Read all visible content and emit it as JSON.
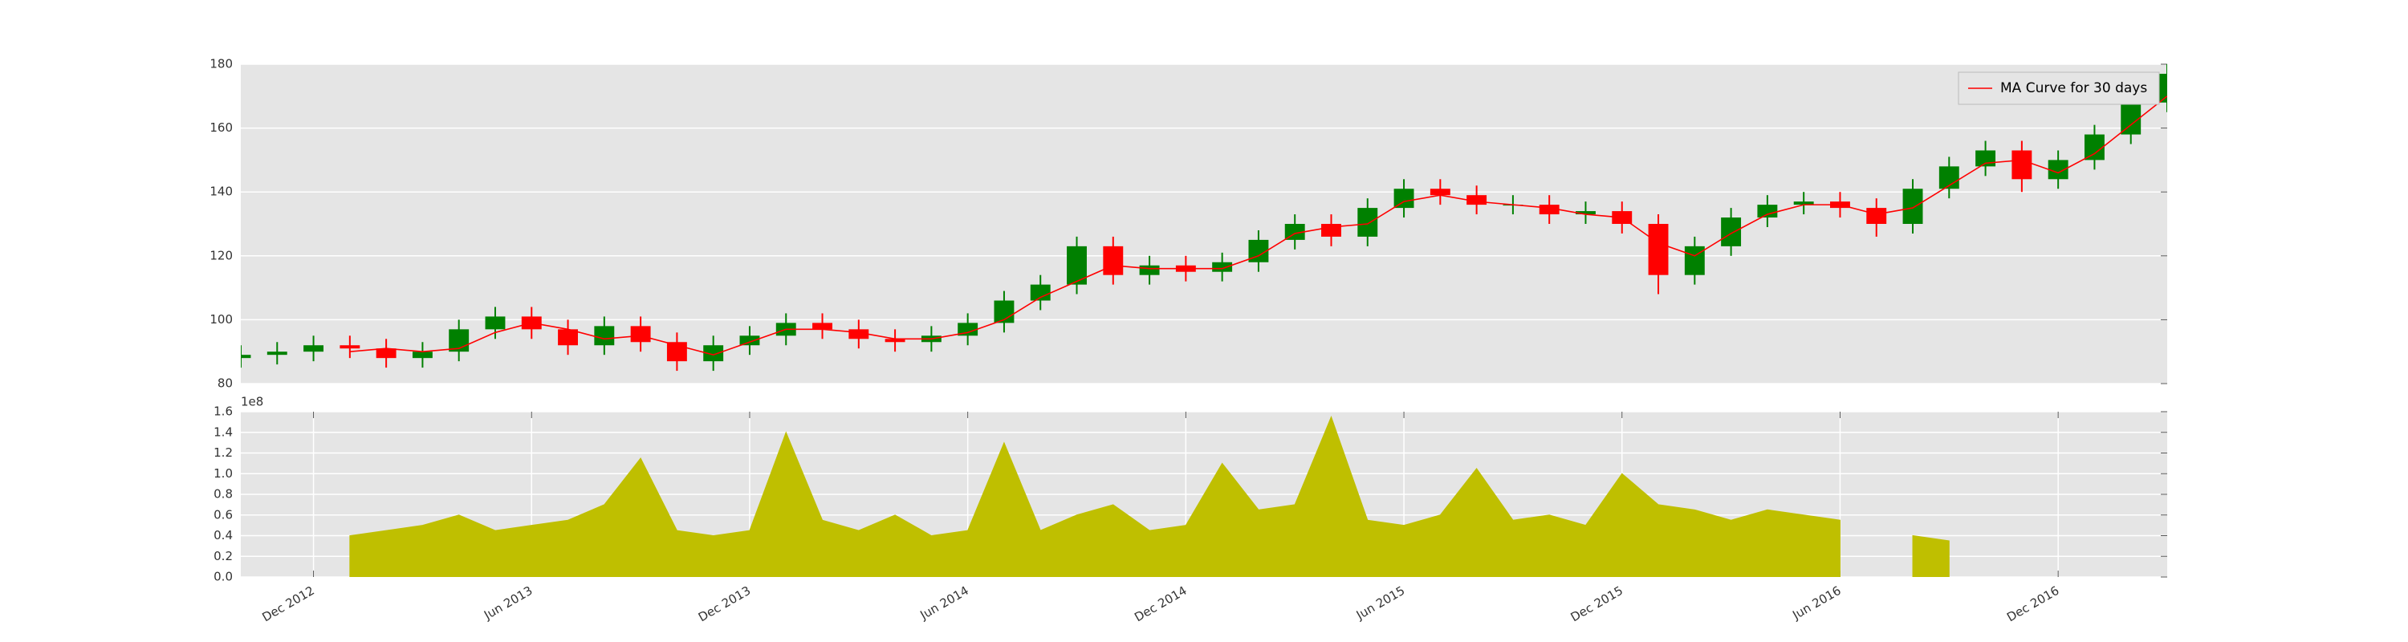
{
  "chart_data": [
    {
      "type": "candlestick",
      "x": [
        "2012-10",
        "2012-11",
        "2012-12",
        "2013-01",
        "2013-02",
        "2013-03",
        "2013-04",
        "2013-05",
        "2013-06",
        "2013-07",
        "2013-08",
        "2013-09",
        "2013-10",
        "2013-11",
        "2013-12",
        "2014-01",
        "2014-02",
        "2014-03",
        "2014-04",
        "2014-05",
        "2014-06",
        "2014-07",
        "2014-08",
        "2014-09",
        "2014-10",
        "2014-11",
        "2014-12",
        "2015-01",
        "2015-02",
        "2015-03",
        "2015-04",
        "2015-05",
        "2015-06",
        "2015-07",
        "2015-08",
        "2015-09",
        "2015-10",
        "2015-11",
        "2015-12",
        "2016-01",
        "2016-02",
        "2016-03",
        "2016-04",
        "2016-05",
        "2016-06",
        "2016-07",
        "2016-08",
        "2016-09",
        "2016-10",
        "2016-11",
        "2016-12",
        "2017-01",
        "2017-02",
        "2017-03"
      ],
      "open": [
        88,
        89,
        90,
        92,
        91,
        88,
        90,
        97,
        101,
        97,
        92,
        98,
        93,
        87,
        92,
        95,
        99,
        97,
        94,
        93,
        95,
        99,
        106,
        111,
        123,
        114,
        117,
        115,
        118,
        125,
        130,
        126,
        135,
        141,
        139,
        136,
        136,
        133,
        134,
        130,
        114,
        123,
        132,
        136,
        137,
        135,
        130,
        141,
        148,
        153,
        144,
        150,
        158,
        168
      ],
      "high": [
        92,
        93,
        95,
        95,
        94,
        93,
        100,
        104,
        104,
        100,
        101,
        101,
        96,
        95,
        98,
        102,
        102,
        100,
        97,
        98,
        102,
        109,
        114,
        126,
        126,
        120,
        120,
        121,
        128,
        133,
        133,
        138,
        144,
        144,
        142,
        139,
        139,
        137,
        137,
        133,
        126,
        135,
        139,
        140,
        140,
        138,
        144,
        151,
        156,
        156,
        153,
        161,
        171,
        180
      ],
      "low": [
        85,
        86,
        87,
        88,
        85,
        85,
        87,
        94,
        94,
        89,
        89,
        90,
        84,
        84,
        89,
        92,
        94,
        91,
        90,
        90,
        92,
        96,
        103,
        108,
        111,
        111,
        112,
        112,
        115,
        122,
        123,
        123,
        132,
        136,
        133,
        133,
        130,
        130,
        127,
        108,
        111,
        120,
        129,
        133,
        132,
        126,
        127,
        138,
        145,
        140,
        141,
        147,
        155,
        165
      ],
      "close": [
        89,
        90,
        92,
        91,
        88,
        90,
        97,
        101,
        97,
        92,
        98,
        93,
        87,
        92,
        95,
        99,
        97,
        94,
        93,
        95,
        99,
        106,
        111,
        123,
        114,
        117,
        115,
        118,
        125,
        130,
        126,
        135,
        141,
        139,
        136,
        136,
        133,
        134,
        130,
        114,
        123,
        132,
        136,
        137,
        135,
        130,
        141,
        148,
        153,
        144,
        150,
        158,
        168,
        177
      ],
      "colorup": "#008000",
      "colordown": "#ff0000",
      "series": [
        {
          "name": "MA Curve for 30 days",
          "color": "#ff0000",
          "values": [
            null,
            null,
            null,
            90,
            91,
            90,
            91,
            96,
            99,
            97,
            94,
            95,
            92,
            89,
            93,
            97,
            97,
            96,
            94,
            94,
            96,
            100,
            107,
            112,
            117,
            116,
            116,
            116,
            120,
            127,
            129,
            130,
            137,
            139,
            137,
            136,
            135,
            133,
            132,
            124,
            120,
            127,
            133,
            136,
            136,
            133,
            135,
            142,
            149,
            150,
            146,
            152,
            161,
            170
          ]
        }
      ],
      "legend": "upper right",
      "xlim": [
        "2012-10",
        "2017-03"
      ],
      "ylim": [
        80,
        180
      ],
      "yticks": [
        80,
        100,
        120,
        140,
        160,
        180
      ],
      "grid": true
    },
    {
      "type": "area",
      "x": [
        "2012-10",
        "2012-11",
        "2012-12",
        "2013-01",
        "2013-02",
        "2013-03",
        "2013-04",
        "2013-05",
        "2013-06",
        "2013-07",
        "2013-08",
        "2013-09",
        "2013-10",
        "2013-11",
        "2013-12",
        "2014-01",
        "2014-02",
        "2014-03",
        "2014-04",
        "2014-05",
        "2014-06",
        "2014-07",
        "2014-08",
        "2014-09",
        "2014-10",
        "2014-11",
        "2014-12",
        "2015-01",
        "2015-02",
        "2015-03",
        "2015-04",
        "2015-05",
        "2015-06",
        "2015-07",
        "2015-08",
        "2015-09",
        "2015-10",
        "2015-11",
        "2015-12",
        "2016-01",
        "2016-02",
        "2016-03",
        "2016-04",
        "2016-05",
        "2016-06",
        "2016-07",
        "2016-08",
        "2016-09",
        "2016-10",
        "2016-11",
        "2016-12",
        "2017-01",
        "2017-02",
        "2017-03"
      ],
      "values": [
        null,
        null,
        null,
        40000000,
        45000000,
        50000000,
        60000000,
        45000000,
        50000000,
        55000000,
        70000000,
        115000000,
        45000000,
        40000000,
        45000000,
        140000000,
        55000000,
        45000000,
        60000000,
        40000000,
        45000000,
        130000000,
        45000000,
        60000000,
        70000000,
        45000000,
        50000000,
        110000000,
        65000000,
        70000000,
        155000000,
        55000000,
        50000000,
        60000000,
        105000000,
        55000000,
        60000000,
        50000000,
        100000000,
        70000000,
        65000000,
        55000000,
        65000000,
        60000000,
        55000000,
        null,
        40000000,
        35000000,
        null,
        null,
        null,
        null,
        null,
        null
      ],
      "color": "#bfbf00",
      "offset_text": "1e8",
      "xlim": [
        "2012-10",
        "2017-03"
      ],
      "xticks": [
        {
          "value": "2012-12",
          "label": "Dec 2012"
        },
        {
          "value": "2013-06",
          "label": "Jun 2013"
        },
        {
          "value": "2013-12",
          "label": "Dec 2013"
        },
        {
          "value": "2014-06",
          "label": "Jun 2014"
        },
        {
          "value": "2014-12",
          "label": "Dec 2014"
        },
        {
          "value": "2015-06",
          "label": "Jun 2015"
        },
        {
          "value": "2015-12",
          "label": "Dec 2015"
        },
        {
          "value": "2016-06",
          "label": "Jun 2016"
        },
        {
          "value": "2016-12",
          "label": "Dec 2016"
        }
      ],
      "ylim": [
        0,
        160000000
      ],
      "yticks": [
        {
          "value": 0,
          "label": "0.0"
        },
        {
          "value": 20000000,
          "label": "0.2"
        },
        {
          "value": 40000000,
          "label": "0.4"
        },
        {
          "value": 60000000,
          "label": "0.6"
        },
        {
          "value": 80000000,
          "label": "0.8"
        },
        {
          "value": 100000000,
          "label": "1.0"
        },
        {
          "value": 120000000,
          "label": "1.2"
        },
        {
          "value": 140000000,
          "label": "1.4"
        },
        {
          "value": 160000000,
          "label": "1.6"
        }
      ],
      "grid": true
    }
  ]
}
